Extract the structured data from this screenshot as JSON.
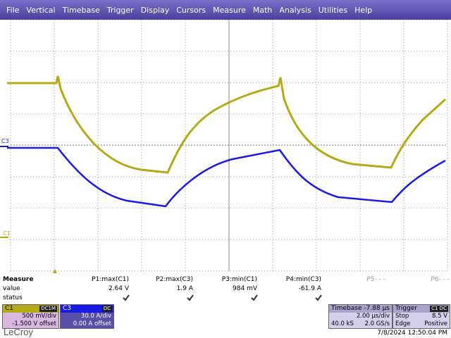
{
  "menu": [
    "File",
    "Vertical",
    "Timebase",
    "Trigger",
    "Display",
    "Cursors",
    "Measure",
    "Math",
    "Analysis",
    "Utilities",
    "Help"
  ],
  "markers": {
    "c3": "C3",
    "c1": "C1"
  },
  "measure": {
    "title": "Measure",
    "row_labels": [
      "value",
      "status"
    ],
    "columns": [
      {
        "name": "P1:max(C1)",
        "value": "2.64 V"
      },
      {
        "name": "P2:max(C3)",
        "value": "1.9 A"
      },
      {
        "name": "P3:min(C1)",
        "value": "984 mV"
      },
      {
        "name": "P4:min(C3)",
        "value": "-61.9 A"
      },
      {
        "name": "P5- - -"
      },
      {
        "name": "P6- - -"
      }
    ]
  },
  "channels": [
    {
      "name": "C1",
      "coupling": "DC1M",
      "scale": "500 mV/div",
      "offset": "-1.500 V offset"
    },
    {
      "name": "C3",
      "coupling": "DC",
      "scale": "30.0 A/div",
      "offset": "0.00 A offset"
    }
  ],
  "timebase": {
    "title": "Timebase",
    "delay": "-7.88 µs",
    "scale": "2.00 µs/div",
    "samples": "40.0 kS",
    "rate": "2.0 GS/s"
  },
  "trigger": {
    "title": "Trigger",
    "source": "C1 DC",
    "mode": "Stop",
    "level": "8.5 V",
    "type": "Edge",
    "slope": "Positive"
  },
  "logo": "LeCroy",
  "datetime": "7/8/2024 12:50:04 PM"
}
